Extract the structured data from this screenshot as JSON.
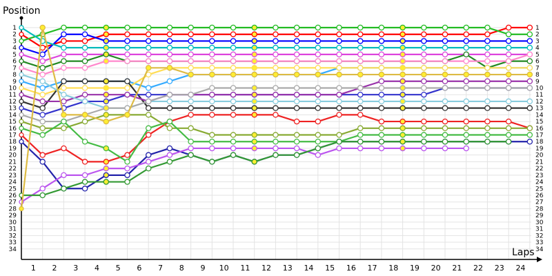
{
  "chart_data": {
    "type": "line",
    "ylabel": "Position",
    "xlabel": "Laps",
    "x_ticks": [
      "1",
      "2",
      "3",
      "4",
      "5",
      "6",
      "7",
      "8",
      "9",
      "10",
      "11",
      "12",
      "13",
      "14",
      "15",
      "16",
      "17",
      "18",
      "19",
      "20",
      "21",
      "22",
      "23",
      "24"
    ],
    "y_ticks": [
      "1",
      "2",
      "3",
      "4",
      "5",
      "6",
      "7",
      "8",
      "9",
      "10",
      "11",
      "12",
      "13",
      "14",
      "15",
      "16",
      "17",
      "18",
      "19",
      "20",
      "21",
      "22",
      "23",
      "24",
      "25",
      "26",
      "27",
      "28",
      "29",
      "30",
      "31",
      "32",
      "33",
      "34"
    ],
    "xlim": [
      0,
      25
    ],
    "ylim": [
      1,
      34
    ],
    "y_inverted": true,
    "grid": true,
    "markers": "circle",
    "end_labels": [
      "1",
      "2",
      "3",
      "4",
      "5",
      "6",
      "7",
      "8",
      "9",
      "10",
      "11",
      "12",
      "13",
      "14",
      "15",
      "16",
      "17",
      "18"
    ],
    "series": [
      {
        "color": "#ff0000",
        "values": [
          2,
          4,
          3,
          3,
          2,
          2,
          2,
          2,
          2,
          2,
          2,
          2,
          2,
          2,
          2,
          2,
          2,
          2,
          2,
          2,
          2,
          2,
          2,
          1,
          1
        ]
      },
      {
        "color": "#22bb22",
        "values": [
          3,
          2,
          1,
          1,
          1,
          1,
          1,
          1,
          1,
          1,
          1,
          1,
          1,
          1,
          1,
          1,
          1,
          1,
          1,
          1,
          1,
          1,
          1,
          2,
          2
        ]
      },
      {
        "color": "#0000ff",
        "values": [
          4,
          5,
          2,
          2,
          3,
          3,
          3,
          3,
          3,
          3,
          3,
          3,
          3,
          3,
          3,
          3,
          3,
          3,
          3,
          3,
          3,
          3,
          3,
          3,
          3
        ]
      },
      {
        "color": "#00bbbb",
        "values": [
          1,
          3,
          4,
          4,
          4,
          4,
          4,
          4,
          4,
          4,
          4,
          4,
          4,
          4,
          4,
          4,
          4,
          4,
          4,
          4,
          4,
          4,
          4,
          4,
          4
        ]
      },
      {
        "color": "#dd44dd",
        "values": [
          5,
          6,
          5,
          5,
          5,
          5,
          5,
          5,
          5,
          5,
          5,
          5,
          5,
          5,
          5,
          5,
          5,
          5,
          5,
          5,
          5,
          5,
          5,
          5,
          5
        ]
      },
      {
        "color": "#228822",
        "values": [
          6,
          7,
          6,
          6,
          5,
          6,
          6,
          6,
          6,
          6,
          6,
          6,
          6,
          6,
          6,
          6,
          6,
          6,
          6,
          6,
          6,
          5,
          7,
          6,
          6
        ]
      },
      {
        "color": "#ff88cc",
        "values": [
          7,
          8,
          7,
          7,
          6,
          6,
          6,
          6,
          6,
          6,
          6,
          6,
          6,
          6,
          6,
          6,
          6,
          6,
          6,
          6,
          6,
          6,
          6,
          6,
          5
        ]
      },
      {
        "color": "#33aaff",
        "values": [
          9,
          10,
          9,
          9,
          9,
          9,
          10,
          9,
          8,
          8,
          8,
          8,
          8,
          8,
          8,
          7,
          7,
          7,
          7,
          7,
          7,
          7,
          7,
          7,
          7
        ]
      },
      {
        "color": "#ffdd55",
        "values": [
          10,
          11,
          10,
          10,
          10,
          10,
          8,
          7,
          7,
          7,
          7,
          7,
          7,
          7,
          7,
          7,
          7,
          7,
          7,
          7,
          7,
          7,
          7,
          7,
          7
        ]
      },
      {
        "color": "#333333",
        "values": [
          12,
          13,
          9,
          9,
          9,
          9,
          13,
          13,
          13,
          13,
          13,
          13,
          13,
          13,
          13,
          13,
          13,
          13,
          13,
          13,
          13,
          13,
          13,
          13,
          13
        ]
      },
      {
        "color": "#3333cc",
        "values": [
          13,
          14,
          13,
          12,
          12,
          11,
          11,
          11,
          11,
          11,
          11,
          11,
          11,
          11,
          11,
          11,
          11,
          11,
          11,
          11,
          10,
          10,
          10,
          10,
          10
        ]
      },
      {
        "color": "#9933aa",
        "values": [
          11,
          12,
          12,
          11,
          11,
          11,
          12,
          11,
          11,
          11,
          11,
          11,
          11,
          11,
          11,
          11,
          10,
          9,
          9,
          9,
          9,
          9,
          9,
          9,
          9
        ]
      },
      {
        "color": "#88ccdd",
        "values": [
          8,
          9,
          11,
          12,
          13,
          13,
          12,
          12,
          12,
          12,
          12,
          12,
          12,
          12,
          12,
          12,
          12,
          12,
          12,
          12,
          12,
          12,
          12,
          12,
          12
        ]
      },
      {
        "color": "#ee2222",
        "values": [
          17,
          20,
          19,
          21,
          21,
          20,
          17,
          15,
          14,
          14,
          14,
          14,
          14,
          15,
          15,
          14,
          14,
          15,
          15,
          15,
          15,
          15,
          15,
          15,
          16
        ]
      },
      {
        "color": "#aaaaaa",
        "values": [
          14,
          15,
          15,
          14,
          13,
          13,
          12,
          11,
          11,
          10,
          10,
          10,
          10,
          10,
          10,
          10,
          10,
          10,
          10,
          10,
          10,
          10,
          10,
          10,
          10
        ]
      },
      {
        "color": "#88aa33",
        "values": [
          15,
          16,
          16,
          15,
          14,
          14,
          14,
          16,
          16,
          17,
          17,
          17,
          17,
          17,
          17,
          17,
          16,
          16,
          16,
          16,
          16,
          16,
          16,
          16,
          16
        ]
      },
      {
        "color": "#44bb44",
        "values": [
          16,
          17,
          15,
          18,
          19,
          21,
          16,
          15,
          18,
          18,
          18,
          18,
          18,
          18,
          18,
          18,
          17,
          17,
          17,
          17,
          17,
          17,
          17,
          17,
          17
        ]
      },
      {
        "color": "#2222aa",
        "values": [
          18,
          21,
          25,
          25,
          23,
          23,
          20,
          19,
          20,
          21,
          20,
          21,
          20,
          20,
          19,
          18,
          18,
          18,
          18,
          18,
          18,
          18,
          18,
          18,
          18
        ]
      },
      {
        "color": "#bb55ee",
        "values": [
          27,
          25,
          23,
          23,
          22,
          22,
          21,
          20,
          19,
          19,
          19,
          19,
          19,
          19,
          20,
          19,
          19,
          19,
          19,
          19,
          19,
          19
        ]
      },
      {
        "color": "#339933",
        "values": [
          26,
          26,
          25,
          24,
          24,
          24,
          22,
          21,
          20,
          21,
          20,
          21,
          20,
          20,
          19,
          18,
          18,
          18,
          18,
          18,
          18,
          18,
          18,
          18
        ]
      },
      {
        "color": "#ddbb44",
        "values": [
          28,
          1,
          14,
          14,
          15,
          14,
          7,
          7,
          8,
          8,
          8,
          8,
          8,
          8,
          8,
          8,
          8,
          8,
          8,
          8,
          8,
          8,
          8,
          8,
          8
        ]
      }
    ]
  }
}
